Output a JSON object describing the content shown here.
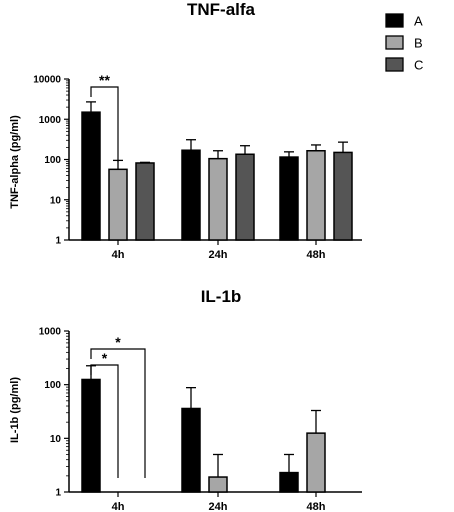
{
  "chart_data": [
    {
      "type": "bar",
      "title": "TNF-alfa",
      "ylabel": "TNF-alpha (pg/ml)",
      "xlabel": "",
      "yscale": "log",
      "ylim": [
        1,
        10000
      ],
      "yticks": [
        "1",
        "10",
        "100",
        "1000",
        "10000"
      ],
      "categories": [
        "4h",
        "24h",
        "48h"
      ],
      "series": [
        {
          "name": "A",
          "color": "#000000",
          "values": [
            1500,
            170,
            115
          ],
          "errors": [
            2700,
            310,
            155
          ]
        },
        {
          "name": "B",
          "color": "#a6a6a6",
          "values": [
            57,
            105,
            165
          ],
          "errors": [
            95,
            165,
            230
          ]
        },
        {
          "name": "C",
          "color": "#555555",
          "values": [
            82,
            135,
            150
          ],
          "errors": [
            85,
            220,
            270
          ]
        }
      ],
      "annotations": [
        {
          "text": "**",
          "from_series": "A",
          "to_series": "B",
          "category": "4h"
        }
      ]
    },
    {
      "type": "bar",
      "title": "IL-1b",
      "ylabel": "IL-1b (pg/ml)",
      "xlabel": "",
      "yscale": "log",
      "ylim": [
        1,
        1000
      ],
      "yticks": [
        "1",
        "10",
        "100",
        "1000"
      ],
      "categories": [
        "4h",
        "24h",
        "48h"
      ],
      "series": [
        {
          "name": "A",
          "color": "#000000",
          "values": [
            125,
            36,
            2.3
          ],
          "errors": [
            225,
            88,
            5
          ]
        },
        {
          "name": "B",
          "color": "#a6a6a6",
          "values": [
            null,
            1.9,
            12.5
          ],
          "errors": [
            null,
            5,
            33
          ]
        },
        {
          "name": "C",
          "color": "#555555",
          "values": [
            null,
            null,
            null
          ],
          "errors": [
            null,
            null,
            null
          ]
        }
      ],
      "annotations": [
        {
          "text": "*",
          "from_series": "A",
          "to_series": "B",
          "category": "4h"
        },
        {
          "text": "*",
          "from_series": "A",
          "to_series": "C",
          "category": "4h"
        }
      ]
    }
  ],
  "legend": {
    "position": "top-right",
    "items": [
      {
        "label": "A",
        "color": "#000000"
      },
      {
        "label": "B",
        "color": "#a6a6a6"
      },
      {
        "label": "C",
        "color": "#555555"
      }
    ]
  }
}
